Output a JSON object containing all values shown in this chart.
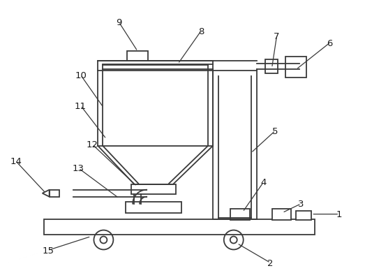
{
  "bg_color": "#ffffff",
  "line_color": "#3a3a3a",
  "lw": 1.3,
  "fig_w": 5.23,
  "fig_h": 4.02,
  "dpi": 100
}
